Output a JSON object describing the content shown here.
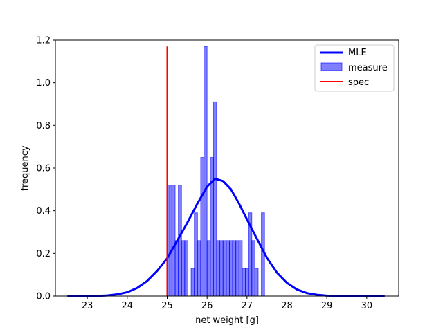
{
  "chart_data": {
    "type": "bar",
    "xlabel": "net weight [g]",
    "ylabel": "frequency",
    "xlim": [
      22.2,
      30.8
    ],
    "ylim": [
      0,
      1.2
    ],
    "xticks": [
      "23",
      "24",
      "25",
      "26",
      "27",
      "28",
      "29",
      "30"
    ],
    "yticks": [
      "0.0",
      "0.2",
      "0.4",
      "0.6",
      "0.8",
      "1.0",
      "1.2"
    ],
    "grid": false,
    "legend_position": "top-right",
    "series": [
      {
        "name": "MLE",
        "kind": "line",
        "color": "#0000ff",
        "x": [
          22.5,
          22.75,
          23.0,
          23.25,
          23.5,
          23.75,
          24.0,
          24.25,
          24.5,
          24.75,
          25.0,
          25.25,
          25.5,
          25.75,
          26.0,
          26.2,
          26.4,
          26.6,
          26.8,
          27.0,
          27.25,
          27.5,
          27.75,
          28.0,
          28.25,
          28.5,
          28.75,
          29.0,
          29.5,
          30.0,
          30.45
        ],
        "y": [
          0.0,
          0.0,
          0.0,
          0.001,
          0.003,
          0.008,
          0.018,
          0.038,
          0.071,
          0.118,
          0.177,
          0.259,
          0.342,
          0.431,
          0.513,
          0.55,
          0.539,
          0.5,
          0.434,
          0.359,
          0.268,
          0.179,
          0.11,
          0.062,
          0.031,
          0.014,
          0.006,
          0.002,
          0.0,
          0.0,
          0.0
        ]
      },
      {
        "name": "measure",
        "kind": "histogram",
        "color": "#0000ff",
        "bin_edges": [
          25.04,
          25.12,
          25.2,
          25.28,
          25.36,
          25.44,
          25.52,
          25.6,
          25.68,
          25.76,
          25.84,
          25.92,
          26.0,
          26.08,
          26.16,
          26.24,
          26.32,
          26.4,
          26.48,
          26.56,
          26.64,
          26.72,
          26.8,
          26.88,
          26.96,
          27.04,
          27.12,
          27.2,
          27.28,
          27.36,
          27.44,
          27.52,
          27.6,
          27.68
        ],
        "values": [
          0.52,
          0.52,
          0.26,
          0.52,
          0.26,
          0.26,
          0.0,
          0.13,
          0.39,
          0.26,
          0.65,
          1.17,
          0.26,
          0.65,
          0.91,
          0.26,
          0.26,
          0.26,
          0.26,
          0.26,
          0.26,
          0.26,
          0.26,
          0.13,
          0.13,
          0.39,
          0.26,
          0.13,
          0.0,
          0.39,
          0.0,
          0.0,
          0.0
        ]
      },
      {
        "name": "spec",
        "kind": "vline",
        "color": "#ff0000",
        "x": 25.0,
        "y_range": [
          0,
          1.17
        ]
      }
    ]
  }
}
